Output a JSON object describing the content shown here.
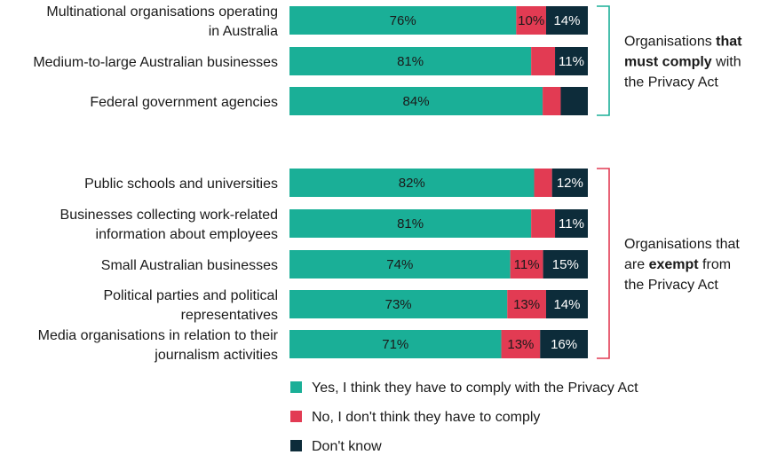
{
  "chart_data": {
    "type": "bar",
    "orientation": "horizontal",
    "stacked": true,
    "percent_scale": true,
    "colors": {
      "yes": "#1aaf97",
      "no": "#e23b53",
      "dont_know": "#0d2c3a"
    },
    "series": [
      {
        "name": "Yes, I think they have to comply with the Privacy Act",
        "key": "yes",
        "values": [
          76,
          81,
          84,
          82,
          81,
          74,
          73,
          71
        ],
        "labels": [
          "76%",
          "81%",
          "84%",
          "82%",
          "81%",
          "74%",
          "73%",
          "71%"
        ]
      },
      {
        "name": "No, I don't think they have to comply",
        "key": "no",
        "values": [
          10,
          8,
          6,
          6,
          8,
          11,
          13,
          13
        ],
        "labels": [
          "10%",
          "",
          "",
          "",
          "",
          "11%",
          "13%",
          "13%"
        ]
      },
      {
        "name": "Don't know",
        "key": "dont_know",
        "values": [
          14,
          11,
          9,
          12,
          11,
          15,
          14,
          16
        ],
        "labels": [
          "14%",
          "11%",
          "",
          "12%",
          "11%",
          "15%",
          "14%",
          "16%"
        ]
      }
    ],
    "categories": [
      [
        "Multinational organisations operating",
        "in Australia"
      ],
      [
        "Medium-to-large Australian businesses"
      ],
      [
        "Federal government agencies"
      ],
      [
        "Public schools and universities"
      ],
      [
        "Businesses collecting work-related",
        "information about employees"
      ],
      [
        "Small Australian businesses"
      ],
      [
        "Political parties and political",
        "representatives"
      ],
      [
        "Media organisations in relation to their",
        "journalism activities"
      ]
    ],
    "groups": [
      {
        "rows": [
          0,
          1,
          2
        ],
        "bracket_color": "#1aaf97",
        "label": [
          [
            {
              "text": "Organisations ",
              "bold": false
            },
            {
              "text": "that",
              "bold": true
            }
          ],
          [
            {
              "text": "must comply",
              "bold": true
            },
            {
              "text": " with",
              "bold": false
            }
          ],
          [
            {
              "text": "the Privacy Act",
              "bold": false
            }
          ]
        ]
      },
      {
        "rows": [
          3,
          4,
          5,
          6,
          7
        ],
        "bracket_color": "#e23b53",
        "label": [
          [
            {
              "text": "Organisations that",
              "bold": false
            }
          ],
          [
            {
              "text": "are ",
              "bold": false
            },
            {
              "text": "exempt",
              "bold": true
            },
            {
              "text": " from",
              "bold": false
            }
          ],
          [
            {
              "text": "the Privacy Act",
              "bold": false
            }
          ]
        ]
      }
    ],
    "legend_position": "bottom",
    "grid": false
  }
}
